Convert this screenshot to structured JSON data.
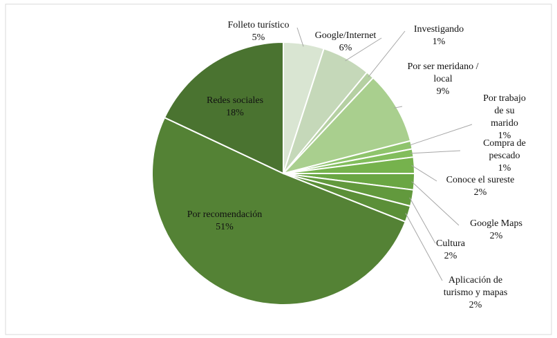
{
  "chart_data": {
    "type": "pie",
    "categories": [
      "Folleto turístico",
      "Google/Internet",
      "Investigando",
      "Por ser meridano /\nlocal",
      "Por trabajo\nde su\nmarido",
      "Compra de pescado",
      "Conoce el sureste",
      "Google Maps",
      "Cultura",
      "Aplicación de\nturismo y mapas",
      "Por recomendación",
      "Redes sociales"
    ],
    "values": [
      5,
      6,
      1,
      9,
      1,
      1,
      2,
      2,
      2,
      2,
      51,
      18
    ],
    "value_labels": [
      "5%",
      "6%",
      "1%",
      "9%",
      "1%",
      "1%",
      "2%",
      "2%",
      "2%",
      "2%",
      "51%",
      "18%"
    ],
    "colors": [
      "#d9e5d2",
      "#c5d8b9",
      "#b5d0a2",
      "#a9cf8e",
      "#8fc46c",
      "#82bd5c",
      "#76b24d",
      "#6aa643",
      "#62993d",
      "#5b8f38",
      "#548235",
      "#4a7330"
    ]
  }
}
